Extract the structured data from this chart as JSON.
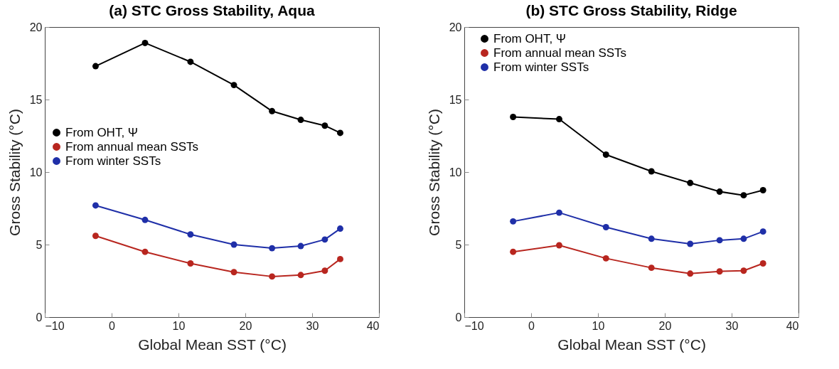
{
  "chart_data": [
    {
      "type": "line",
      "title": "(a) STC Gross Stability, Aqua",
      "xlabel": "Global Mean SST (°C)",
      "ylabel": "Gross Stability (°C)",
      "x": [
        -2.4,
        5,
        11.8,
        18.3,
        24,
        28.3,
        31.9,
        34.2
      ],
      "xlim": [
        -10,
        40
      ],
      "xticks": [
        -10,
        0,
        10,
        20,
        30,
        40
      ],
      "ylim": [
        0,
        20
      ],
      "yticks": [
        0,
        5,
        10,
        15,
        20
      ],
      "grid": false,
      "legend": "left",
      "marker": "circle",
      "line_style": "solid",
      "series": [
        {
          "name": "From OHT, Ψ",
          "color": "#000000",
          "values": [
            17.3,
            18.9,
            17.6,
            16.0,
            14.2,
            13.6,
            13.2,
            12.7
          ]
        },
        {
          "name": "From annual mean SSTs",
          "color": "#b8261f",
          "values": [
            5.6,
            4.5,
            3.7,
            3.1,
            2.8,
            2.9,
            3.2,
            4.0
          ]
        },
        {
          "name": "From winter SSTs",
          "color": "#1f2fa8",
          "values": [
            7.7,
            6.7,
            5.7,
            5.0,
            4.75,
            4.9,
            5.35,
            6.1
          ]
        }
      ]
    },
    {
      "type": "line",
      "title": "(b) STC Gross Stability, Ridge",
      "xlabel": "Global Mean SST (°C)",
      "ylabel": "Gross Stability (°C)",
      "x": [
        -2.7,
        4.2,
        11.2,
        18,
        23.8,
        28.2,
        31.8,
        34.7
      ],
      "xlim": [
        -10,
        40
      ],
      "xticks": [
        -10,
        0,
        10,
        20,
        30,
        40
      ],
      "ylim": [
        0,
        20
      ],
      "yticks": [
        0,
        5,
        10,
        15,
        20
      ],
      "grid": false,
      "legend": "top left",
      "marker": "circle",
      "line_style": "solid",
      "series": [
        {
          "name": "From OHT, Ψ",
          "color": "#000000",
          "values": [
            13.8,
            13.65,
            11.2,
            10.05,
            9.25,
            8.65,
            8.4,
            8.75
          ]
        },
        {
          "name": "From annual mean SSTs",
          "color": "#b8261f",
          "values": [
            4.5,
            4.95,
            4.05,
            3.4,
            3.0,
            3.15,
            3.2,
            3.7
          ]
        },
        {
          "name": "From winter SSTs",
          "color": "#1f2fa8",
          "values": [
            6.6,
            7.2,
            6.2,
            5.4,
            5.05,
            5.3,
            5.4,
            5.9
          ]
        }
      ]
    }
  ]
}
